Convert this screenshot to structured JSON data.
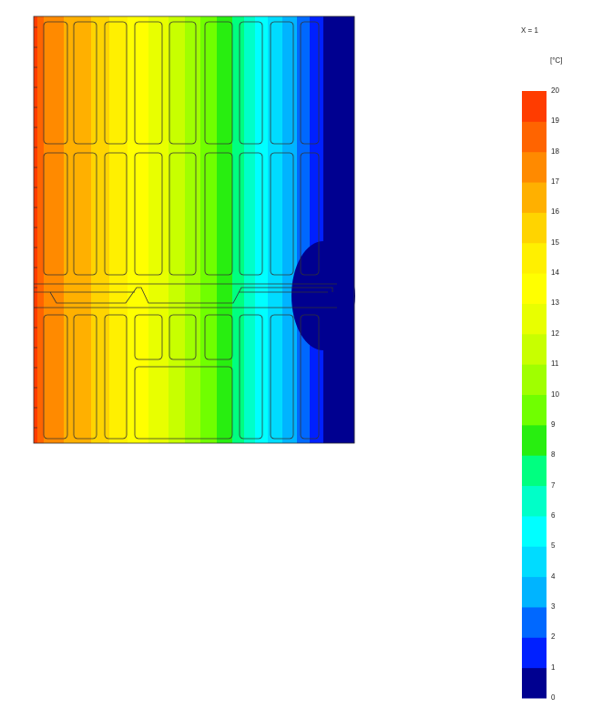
{
  "header": {
    "section_label": "X = 1",
    "unit_label": "[°C]"
  },
  "chart_data": {
    "type": "heatmap",
    "colorbar": {
      "min": 0,
      "max": 20,
      "step": 1,
      "tick_labels": [
        "20",
        "19",
        "18",
        "17",
        "16",
        "15",
        "14",
        "13",
        "12",
        "11",
        "10",
        "9",
        "8",
        "7",
        "6",
        "5",
        "4",
        "3",
        "2",
        "1",
        "0"
      ],
      "colors_low_to_high": [
        "#000090",
        "#0020ff",
        "#0068ff",
        "#00b4ff",
        "#00dcff",
        "#00ffff",
        "#00ffc8",
        "#00ff80",
        "#28ee10",
        "#70ff00",
        "#a0ff00",
        "#c8ff00",
        "#e8ff00",
        "#ffff00",
        "#fff000",
        "#ffd400",
        "#ffb000",
        "#ff8a00",
        "#ff6400",
        "#ff3c00"
      ]
    }
  }
}
